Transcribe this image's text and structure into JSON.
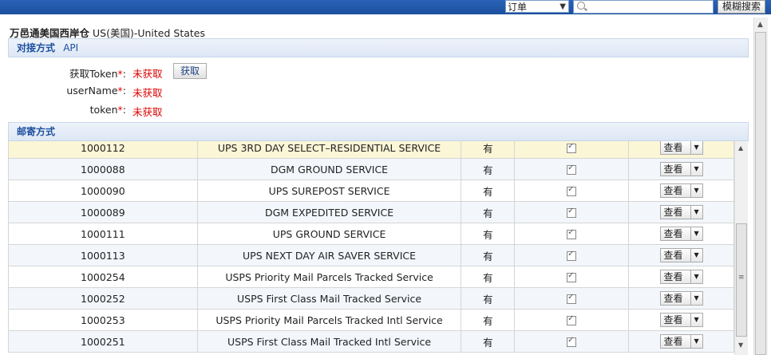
{
  "topbar": {
    "select_value": "订单",
    "search_placeholder": "",
    "fuzzy_label": "模糊搜索"
  },
  "warehouse": {
    "name": "万邑通美国西岸仓",
    "region": "US(美国)-United States"
  },
  "connect": {
    "title": "对接方式",
    "mode": "API",
    "fields": [
      {
        "label": "获取Token",
        "value": "未获取"
      },
      {
        "label": "userName",
        "value": "未获取"
      },
      {
        "label": "token",
        "value": "未获取"
      }
    ],
    "get_button": "获取"
  },
  "shipping": {
    "title": "邮寄方式",
    "rows": [
      {
        "code": "1000112",
        "name": "UPS 3RD DAY SELECT–RESIDENTIAL SERVICE",
        "has": "有",
        "view": "查看"
      },
      {
        "code": "1000088",
        "name": "DGM GROUND SERVICE",
        "has": "有",
        "view": "查看"
      },
      {
        "code": "1000090",
        "name": "UPS SUREPOST SERVICE",
        "has": "有",
        "view": "查看"
      },
      {
        "code": "1000089",
        "name": "DGM EXPEDITED SERVICE",
        "has": "有",
        "view": "查看"
      },
      {
        "code": "1000111",
        "name": "UPS GROUND SERVICE",
        "has": "有",
        "view": "查看"
      },
      {
        "code": "1000113",
        "name": "UPS NEXT DAY AIR SAVER SERVICE",
        "has": "有",
        "view": "查看"
      },
      {
        "code": "1000254",
        "name": "USPS Priority Mail Parcels Tracked Service",
        "has": "有",
        "view": "查看"
      },
      {
        "code": "1000252",
        "name": "USPS First Class Mail Tracked Service",
        "has": "有",
        "view": "查看"
      },
      {
        "code": "1000253",
        "name": "USPS Priority Mail Parcels Tracked Intl Service",
        "has": "有",
        "view": "查看"
      },
      {
        "code": "1000251",
        "name": "USPS First Class Mail Tracked Intl Service",
        "has": "有",
        "view": "查看"
      }
    ]
  }
}
